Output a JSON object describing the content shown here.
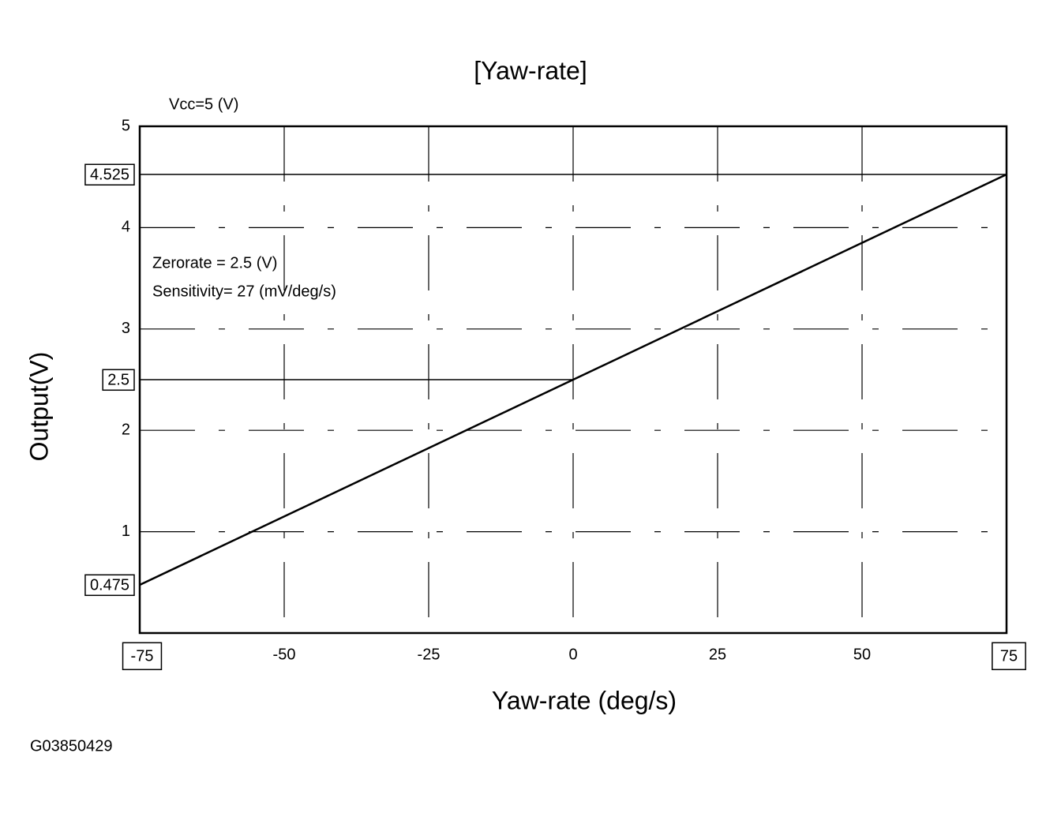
{
  "chart_data": {
    "type": "line",
    "title": "[Yaw-rate]",
    "subtitle": "Vcc=5 (V)",
    "annotations": [
      "Zerorate = 2.5 (V)",
      "Sensitivity= 27 (mV/deg/s)"
    ],
    "x_label": "Yaw-rate  (deg/s)",
    "y_label": "Output(V)",
    "footer": "G03850429",
    "x": [
      -75,
      75
    ],
    "series": [
      {
        "name": "Output",
        "color": "#000000",
        "values": [
          0.475,
          4.525
        ]
      }
    ],
    "xlim": [
      -75,
      75
    ],
    "xticks": [
      -50,
      -25,
      0,
      25,
      50
    ],
    "marked_xticks": [
      -75,
      75
    ],
    "ylim": [
      0,
      5
    ],
    "yticks": [
      1,
      2,
      3,
      4,
      5
    ],
    "marked_yticks": [
      0.475,
      2.5,
      4.525
    ],
    "grid": true
  }
}
